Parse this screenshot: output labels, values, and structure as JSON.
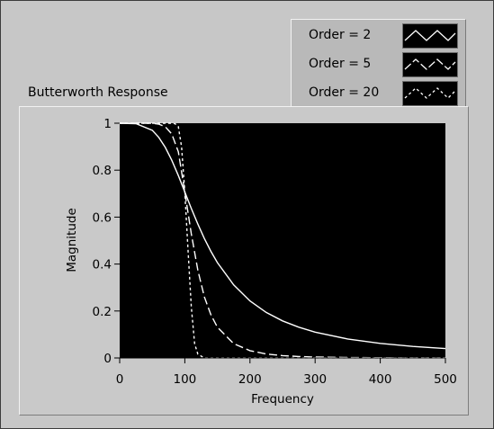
{
  "graph_title": "Butterworth Response",
  "colors": {
    "panel": "#c7c7c7",
    "plot_background": "#000000",
    "curve": "#ffffff"
  },
  "legend": {
    "items": [
      {
        "label": "Order = 2",
        "line_style": "solid"
      },
      {
        "label": "Order = 5",
        "line_style": "long-dash"
      },
      {
        "label": "Order = 20",
        "line_style": "short-dash"
      }
    ]
  },
  "chart_data": {
    "type": "line",
    "title": "Butterworth Response",
    "xlabel": "Frequency",
    "ylabel": "Magnitude",
    "xlim": [
      0,
      500
    ],
    "ylim": [
      0,
      1
    ],
    "x_ticks": [
      0,
      100,
      200,
      300,
      400,
      500
    ],
    "x_tick_labels": [
      "0",
      "100",
      "200",
      "300",
      "400",
      "500"
    ],
    "y_ticks": [
      0,
      0.2,
      0.4,
      0.6,
      0.8,
      1
    ],
    "y_tick_labels": [
      "0",
      "0.2",
      "0.4",
      "0.6",
      "0.8",
      "1"
    ],
    "grid": false,
    "legend_position": "top-right",
    "series": [
      {
        "name": "Order = 2",
        "line_style": "solid",
        "x": [
          0,
          25,
          50,
          60,
          70,
          80,
          90,
          100,
          110,
          120,
          130,
          140,
          150,
          175,
          200,
          225,
          250,
          275,
          300,
          350,
          400,
          450,
          500
        ],
        "y": [
          1.0,
          0.998,
          0.97,
          0.94,
          0.897,
          0.842,
          0.777,
          0.707,
          0.637,
          0.57,
          0.509,
          0.454,
          0.406,
          0.311,
          0.243,
          0.194,
          0.158,
          0.131,
          0.11,
          0.081,
          0.062,
          0.049,
          0.04
        ]
      },
      {
        "name": "Order = 5",
        "line_style": "long-dash",
        "x": [
          0,
          25,
          50,
          60,
          70,
          80,
          90,
          100,
          110,
          120,
          130,
          140,
          150,
          175,
          200,
          225,
          250,
          275,
          300,
          350,
          400,
          450,
          500
        ],
        "y": [
          1.0,
          1.0,
          1.0,
          0.996,
          0.985,
          0.954,
          0.878,
          0.707,
          0.529,
          0.373,
          0.26,
          0.184,
          0.131,
          0.061,
          0.031,
          0.017,
          0.01,
          0.006,
          0.004,
          0.002,
          0.001,
          0.0,
          0.0
        ]
      },
      {
        "name": "Order = 20",
        "line_style": "short-dash",
        "x": [
          0,
          60,
          70,
          80,
          85,
          90,
          95,
          100,
          105,
          110,
          115,
          120,
          130,
          150,
          500
        ],
        "y": [
          1.0,
          1.0,
          1.0,
          1.0,
          0.998,
          0.985,
          0.899,
          0.707,
          0.457,
          0.218,
          0.061,
          0.016,
          0.0,
          0.0,
          0.0
        ]
      }
    ]
  }
}
